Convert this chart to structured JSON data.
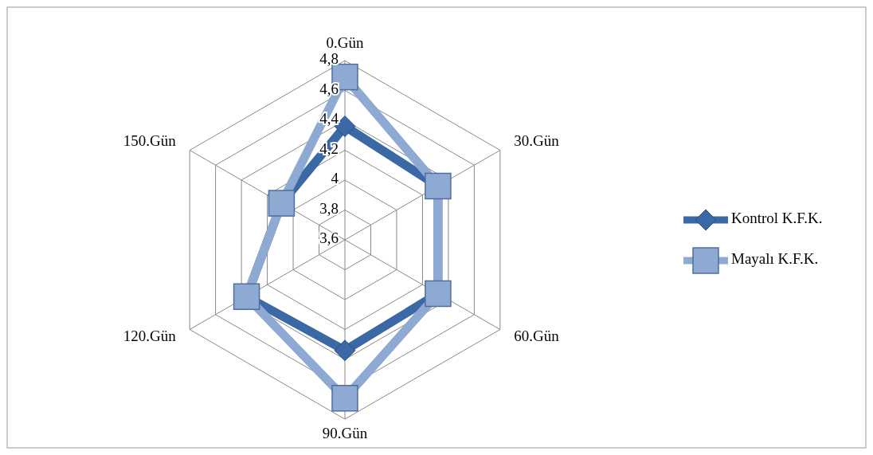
{
  "chart_data": {
    "type": "radar",
    "categories": [
      "0.Gün",
      "30.Gün",
      "60.Gün",
      "90.Gün",
      "120.Gün",
      "150.Gün"
    ],
    "series": [
      {
        "name": "Kontrol K.F.K.",
        "color": "#3b69a6",
        "marker": "diamond",
        "values": [
          4.36,
          4.32,
          4.32,
          4.34,
          4.36,
          4.09
        ]
      },
      {
        "name": "Mayalı K.F.K.",
        "color": "#8eaad3",
        "marker": "square",
        "values": [
          4.69,
          4.32,
          4.32,
          4.66,
          4.36,
          4.09
        ]
      }
    ],
    "ylim": [
      3.6,
      4.8
    ],
    "yticks": [
      {
        "value": 3.6,
        "label": "3,6"
      },
      {
        "value": 3.8,
        "label": "3,8"
      },
      {
        "value": 4,
        "label": "4"
      },
      {
        "value": 4.2,
        "label": "4,2"
      },
      {
        "value": 4.4,
        "label": "4,4"
      },
      {
        "value": 4.6,
        "label": "4,6"
      },
      {
        "value": 4.8,
        "label": "4,8"
      }
    ],
    "grid": true,
    "legend": "right"
  }
}
